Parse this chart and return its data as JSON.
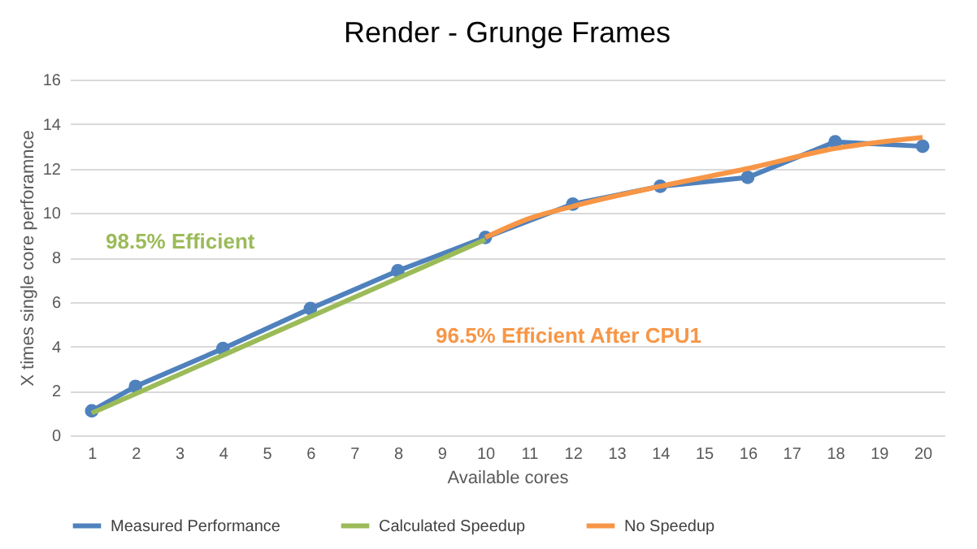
{
  "chart_data": {
    "type": "line",
    "title": "Render - Grunge Frames",
    "xlabel": "Available cores",
    "ylabel": "X times single core perforamnce",
    "x": [
      1,
      2,
      4,
      6,
      8,
      10,
      12,
      14,
      16,
      18,
      20
    ],
    "series": [
      {
        "name": "Measured Performance",
        "color": "#4f81bd",
        "marker": "circle",
        "values": [
          1.1,
          2.2,
          3.9,
          5.7,
          7.4,
          8.9,
          10.4,
          11.2,
          11.6,
          13.2,
          13.0
        ]
      },
      {
        "name": "Calculated Speedup",
        "color": "#9bbb59",
        "x": [
          1,
          10
        ],
        "values": [
          1.0,
          8.8
        ]
      },
      {
        "name": "No Speedup",
        "color": "#f79646",
        "x": [
          10,
          11,
          12,
          14,
          16,
          18,
          20
        ],
        "values": [
          8.9,
          9.75,
          10.3,
          11.2,
          12.0,
          12.9,
          13.4
        ]
      }
    ],
    "xlim": [
      0.5,
      20.5
    ],
    "xticks": [
      1,
      2,
      3,
      4,
      5,
      6,
      7,
      8,
      9,
      10,
      11,
      12,
      13,
      14,
      15,
      16,
      17,
      18,
      19,
      20
    ],
    "ylim": [
      0,
      16
    ],
    "yticks": [
      0,
      2,
      4,
      6,
      8,
      10,
      12,
      14,
      16
    ],
    "grid": "y",
    "legend": "bottom",
    "annotations": [
      "98.5% Efficient",
      "96.5% Efficient After CPU1"
    ]
  }
}
